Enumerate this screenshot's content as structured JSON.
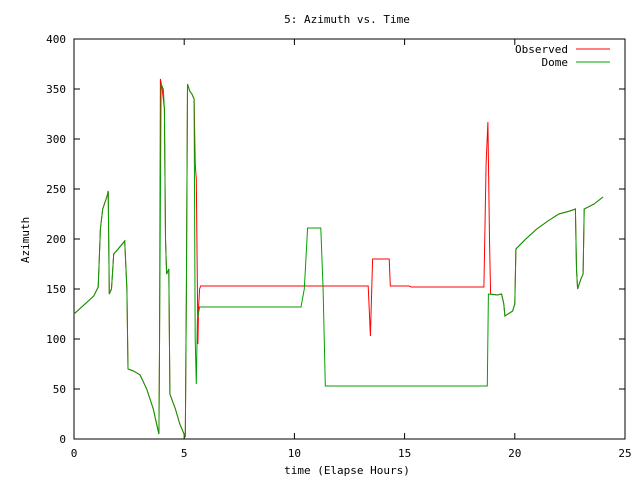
{
  "chart_data": {
    "type": "line",
    "title": "5: Azimuth vs. Time",
    "xlabel": "time (Elapse Hours)",
    "ylabel": "Azimuth",
    "xlim": [
      0,
      25
    ],
    "ylim": [
      0,
      400
    ],
    "xticks": [
      0,
      5,
      10,
      15,
      20,
      25
    ],
    "yticks": [
      0,
      50,
      100,
      150,
      200,
      250,
      300,
      350,
      400
    ],
    "grid": false,
    "legend_position": "top-right",
    "series": [
      {
        "name": "Observed",
        "color": "#ff0000",
        "points": [
          [
            0.0,
            125
          ],
          [
            0.5,
            135
          ],
          [
            0.9,
            143
          ],
          [
            1.1,
            152
          ],
          [
            1.2,
            210
          ],
          [
            1.3,
            230
          ],
          [
            1.5,
            243
          ],
          [
            1.55,
            248
          ],
          [
            1.57,
            210
          ],
          [
            1.6,
            145
          ],
          [
            1.7,
            150
          ],
          [
            1.8,
            185
          ],
          [
            2.0,
            190
          ],
          [
            2.3,
            198
          ],
          [
            2.4,
            150
          ],
          [
            2.45,
            70
          ],
          [
            2.7,
            68
          ],
          [
            3.0,
            64
          ],
          [
            3.3,
            50
          ],
          [
            3.6,
            30
          ],
          [
            3.75,
            15
          ],
          [
            3.85,
            5
          ],
          [
            3.88,
            90
          ],
          [
            3.92,
            360
          ],
          [
            4.0,
            350
          ],
          [
            4.1,
            330
          ],
          [
            4.15,
            200
          ],
          [
            4.2,
            165
          ],
          [
            4.3,
            170
          ],
          [
            4.35,
            45
          ],
          [
            4.6,
            30
          ],
          [
            4.8,
            15
          ],
          [
            5.05,
            2
          ],
          [
            5.1,
            150
          ],
          [
            5.15,
            355
          ],
          [
            5.25,
            348
          ],
          [
            5.35,
            345
          ],
          [
            5.45,
            340
          ],
          [
            5.5,
            275
          ],
          [
            5.55,
            260
          ],
          [
            5.6,
            150
          ],
          [
            5.62,
            95
          ],
          [
            5.65,
            130
          ],
          [
            5.7,
            150
          ],
          [
            5.75,
            153
          ],
          [
            10.0,
            153
          ],
          [
            12.0,
            153
          ],
          [
            13.0,
            153
          ],
          [
            13.35,
            153
          ],
          [
            13.45,
            103
          ],
          [
            13.55,
            180
          ],
          [
            14.0,
            180
          ],
          [
            14.3,
            180
          ],
          [
            14.35,
            153
          ],
          [
            15.2,
            153
          ],
          [
            15.3,
            152
          ],
          [
            18.0,
            152
          ],
          [
            18.6,
            152
          ],
          [
            18.7,
            275
          ],
          [
            18.78,
            317
          ],
          [
            18.85,
            200
          ],
          [
            18.9,
            145
          ],
          [
            19.2,
            144
          ],
          [
            19.4,
            145
          ],
          [
            19.5,
            135
          ],
          [
            19.55,
            123
          ],
          [
            19.9,
            128
          ],
          [
            20.0,
            135
          ],
          [
            20.05,
            190
          ],
          [
            20.5,
            200
          ],
          [
            21.0,
            210
          ],
          [
            21.5,
            218
          ],
          [
            22.0,
            225
          ],
          [
            22.5,
            228
          ],
          [
            22.75,
            230
          ],
          [
            22.8,
            170
          ],
          [
            22.85,
            150
          ],
          [
            23.0,
            160
          ],
          [
            23.1,
            165
          ],
          [
            23.15,
            230
          ],
          [
            23.6,
            235
          ],
          [
            24.0,
            242
          ]
        ]
      },
      {
        "name": "Dome",
        "color": "#00a000",
        "points": [
          [
            0.0,
            125
          ],
          [
            0.5,
            135
          ],
          [
            0.9,
            143
          ],
          [
            1.1,
            152
          ],
          [
            1.2,
            210
          ],
          [
            1.3,
            230
          ],
          [
            1.5,
            243
          ],
          [
            1.55,
            248
          ],
          [
            1.6,
            145
          ],
          [
            1.7,
            150
          ],
          [
            1.8,
            185
          ],
          [
            2.0,
            190
          ],
          [
            2.3,
            198
          ],
          [
            2.4,
            150
          ],
          [
            2.45,
            70
          ],
          [
            2.7,
            68
          ],
          [
            3.0,
            64
          ],
          [
            3.3,
            50
          ],
          [
            3.6,
            30
          ],
          [
            3.75,
            15
          ],
          [
            3.85,
            5
          ],
          [
            3.88,
            90
          ],
          [
            3.95,
            355
          ],
          [
            4.05,
            350
          ],
          [
            4.1,
            330
          ],
          [
            4.15,
            200
          ],
          [
            4.2,
            165
          ],
          [
            4.3,
            170
          ],
          [
            4.35,
            45
          ],
          [
            4.6,
            30
          ],
          [
            4.8,
            15
          ],
          [
            5.05,
            2
          ],
          [
            5.1,
            150
          ],
          [
            5.15,
            355
          ],
          [
            5.25,
            348
          ],
          [
            5.35,
            345
          ],
          [
            5.45,
            340
          ],
          [
            5.5,
            100
          ],
          [
            5.55,
            55
          ],
          [
            5.6,
            120
          ],
          [
            5.7,
            132
          ],
          [
            6.0,
            132
          ],
          [
            8.0,
            132
          ],
          [
            10.3,
            132
          ],
          [
            10.45,
            150
          ],
          [
            10.6,
            211
          ],
          [
            11.2,
            211
          ],
          [
            11.3,
            150
          ],
          [
            11.4,
            53
          ],
          [
            13.0,
            53
          ],
          [
            15.0,
            53
          ],
          [
            17.0,
            53
          ],
          [
            18.75,
            53
          ],
          [
            18.8,
            145
          ],
          [
            19.2,
            144
          ],
          [
            19.4,
            145
          ],
          [
            19.5,
            135
          ],
          [
            19.55,
            123
          ],
          [
            19.9,
            128
          ],
          [
            20.0,
            135
          ],
          [
            20.05,
            190
          ],
          [
            20.5,
            200
          ],
          [
            21.0,
            210
          ],
          [
            21.5,
            218
          ],
          [
            22.0,
            225
          ],
          [
            22.5,
            228
          ],
          [
            22.75,
            230
          ],
          [
            22.8,
            170
          ],
          [
            22.85,
            150
          ],
          [
            23.0,
            160
          ],
          [
            23.1,
            165
          ],
          [
            23.15,
            230
          ],
          [
            23.6,
            235
          ],
          [
            24.0,
            242
          ]
        ]
      }
    ]
  }
}
